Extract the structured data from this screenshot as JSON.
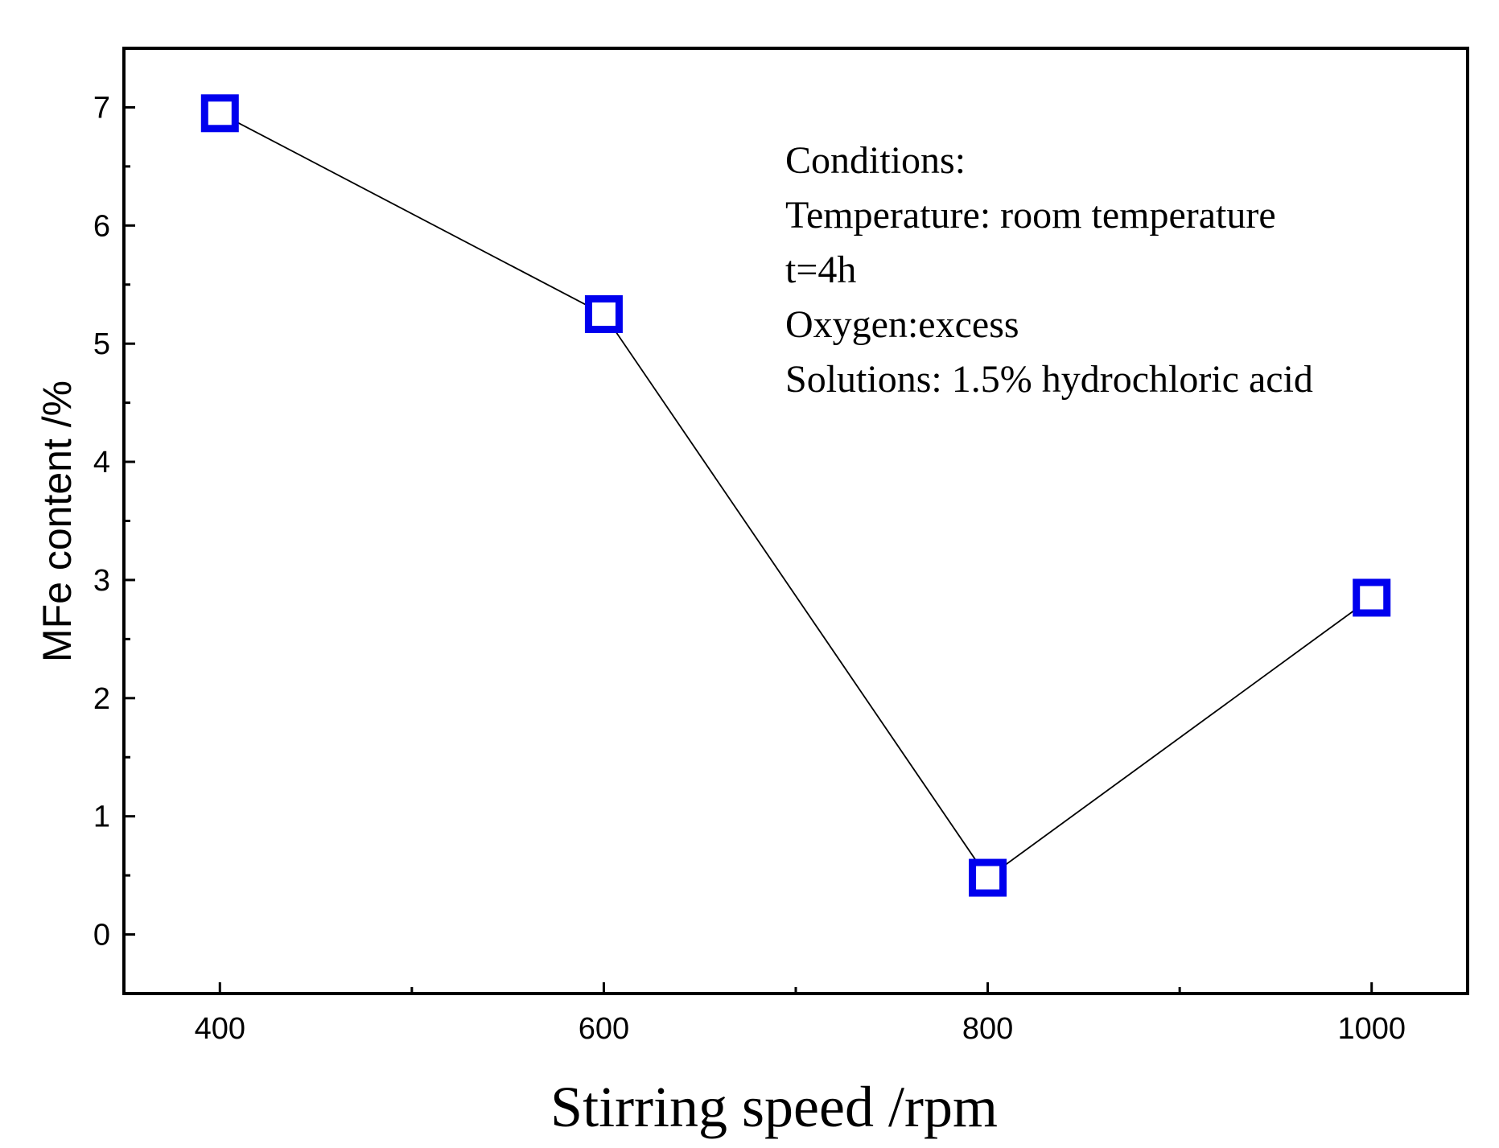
{
  "chart_data": {
    "type": "line",
    "x": [
      400,
      600,
      800,
      1000
    ],
    "series": [
      {
        "name": "MFe content",
        "values": [
          6.95,
          5.25,
          0.48,
          2.85
        ]
      }
    ],
    "xlabel": "Stirring speed /rpm",
    "ylabel": "MFe content /%",
    "xlim": [
      350,
      1050
    ],
    "ylim": [
      -0.5,
      7.5
    ],
    "x_ticks": [
      400,
      600,
      800,
      1000
    ],
    "x_minor_ticks": [
      500,
      700,
      900
    ],
    "y_ticks": [
      0,
      1,
      2,
      3,
      4,
      5,
      6,
      7
    ],
    "y_minor_ticks": [
      0.5,
      1.5,
      2.5,
      3.5,
      4.5,
      5.5,
      6.5
    ],
    "marker": "hollow-square",
    "marker_color": "#0000ee",
    "line_color": "#000000",
    "grid": false,
    "annotation": {
      "lines": [
        "Conditions:",
        "Temperature: room temperature",
        "t=4h",
        "Oxygen:excess",
        "Solutions: 1.5% hydrochloric acid"
      ]
    }
  }
}
